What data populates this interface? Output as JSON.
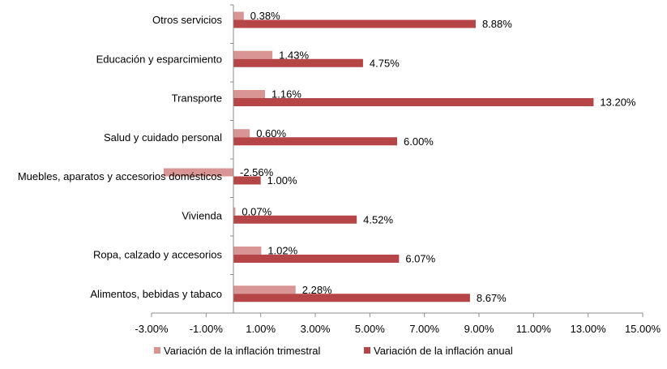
{
  "chart_data": {
    "type": "bar",
    "orientation": "horizontal",
    "categories": [
      "Otros servicios",
      "Educación y esparcimiento",
      "Transporte",
      "Salud y cuidado personal",
      "Muebles, aparatos y accesorios domésticos",
      "Vivienda",
      "Ropa, calzado y accesorios",
      "Alimentos, bebidas y tabaco"
    ],
    "series": [
      {
        "name": "Variación de la inflación trimestral",
        "color": "#d99594",
        "values": [
          0.38,
          1.43,
          1.16,
          0.6,
          -2.56,
          0.07,
          1.02,
          2.28
        ],
        "labels": [
          "0.38%",
          "1.43%",
          "1.16%",
          "0.60%",
          "-2.56%",
          "0.07%",
          "1.02%",
          "2.28%"
        ]
      },
      {
        "name": "Variación de la inflación anual",
        "color": "#b54546",
        "values": [
          8.88,
          4.75,
          13.2,
          6.0,
          1.0,
          4.52,
          6.07,
          8.67
        ],
        "labels": [
          "8.88%",
          "4.75%",
          "13.20%",
          "6.00%",
          "1.00%",
          "4.52%",
          "6.07%",
          "8.67%"
        ]
      }
    ],
    "xlim": [
      -3,
      15
    ],
    "xticks": [
      -3,
      -1,
      1,
      3,
      5,
      7,
      9,
      11,
      13,
      15
    ],
    "xtick_labels": [
      "-3.00%",
      "-1.00%",
      "1.00%",
      "3.00%",
      "5.00%",
      "7.00%",
      "9.00%",
      "11.00%",
      "13.00%",
      "15.00%"
    ],
    "title": "",
    "xlabel": "",
    "ylabel": "",
    "grid": false,
    "legend_position": "bottom"
  }
}
